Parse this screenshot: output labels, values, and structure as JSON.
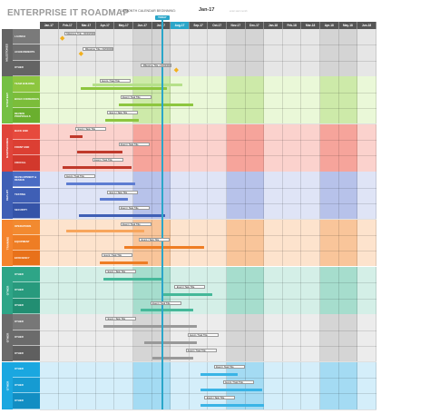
{
  "header": {
    "title": "ENTERPRISE IT ROADMAP",
    "subtitle": "18 MONTH CALENDAR BEGINNING:",
    "start_month": "Jan-17",
    "note": "enter start month",
    "today_label": "TODAY"
  },
  "months": [
    "Jan-17",
    "Feb-17",
    "Mar-17",
    "Apr-17",
    "May-17",
    "Jun-17",
    "Jul-17",
    "Aug-17",
    "Sep-17",
    "Oct-17",
    "Nov-17",
    "Dec-17",
    "Jan-18",
    "Feb-18",
    "Mar-18",
    "Apr-18",
    "May-18",
    "Jun-18"
  ],
  "today_month_index": 6.5,
  "categories": [
    {
      "name": "MILESTONES",
      "color": "#646464",
      "light": "#e6e6e6",
      "mid": "#d4d4d4",
      "rows": [
        {
          "label": "LAUNCH",
          "color": "#7a7a7a",
          "bars": [],
          "callouts": [
            {
              "text": "Milestone Title • 00/00/0000",
              "start": 1.3
            }
          ],
          "milestones": [
            {
              "pos": 1.2
            }
          ]
        },
        {
          "label": "ACHIEVEMENTS",
          "color": "#6e6e6e",
          "bars": [],
          "callouts": [
            {
              "text": "Milestone Title • 00/00/0000",
              "start": 2.3
            }
          ],
          "milestones": [
            {
              "pos": 2.2
            }
          ]
        },
        {
          "label": "OTHER",
          "color": "#646464",
          "bars": [],
          "callouts": [
            {
              "text": "Milestone Title • 00/00/0000",
              "start": 5.4
            }
          ],
          "milestones": [
            {
              "pos": 7.3
            }
          ]
        }
      ]
    },
    {
      "name": "STRATEGY",
      "color": "#75c043",
      "light": "#eaf8d8",
      "mid": "#cdeaa9",
      "rows": [
        {
          "label": "TEAM BUILDING",
          "color": "#8dc63f",
          "bars": [
            {
              "start": 2.2,
              "end": 6.8,
              "color": "#8dc63f"
            },
            {
              "start": 2.8,
              "end": 7.6,
              "color": "#b5e08a"
            }
          ],
          "callouts": [
            {
              "text": "Event / Task Title",
              "start": 3.2
            }
          ]
        },
        {
          "label": "BUILD CONSENSUS",
          "color": "#7bbd3a",
          "bars": [
            {
              "start": 4.2,
              "end": 8.2,
              "color": "#8dc63f"
            }
          ],
          "callouts": [
            {
              "text": "Event / Task Title",
              "start": 4.3
            }
          ]
        },
        {
          "label": "REVIEW PROPOSALS",
          "color": "#6aaf2e",
          "bars": [
            {
              "start": 3.5,
              "end": 5.3,
              "color": "#8dc63f"
            }
          ],
          "callouts": [
            {
              "text": "Event / Task Title",
              "start": 3.6
            }
          ]
        }
      ]
    },
    {
      "name": "MAINTENANCE",
      "color": "#e0443a",
      "light": "#fbd2cd",
      "mid": "#f6a49b",
      "rows": [
        {
          "label": "BACK END",
          "color": "#e64a3d",
          "bars": [
            {
              "start": 1.6,
              "end": 2.3,
              "color": "#c0392b"
            }
          ],
          "callouts": [
            {
              "text": "Event / Task Title",
              "start": 1.9
            }
          ]
        },
        {
          "label": "FRONT END",
          "color": "#dc3f33",
          "bars": [
            {
              "start": 2.0,
              "end": 4.4,
              "color": "#c0392b"
            }
          ],
          "callouts": [
            {
              "text": "Event / Task Title",
              "start": 4.2
            }
          ]
        },
        {
          "label": "CRUCIAL",
          "color": "#d2382c",
          "bars": [
            {
              "start": 1.2,
              "end": 4.9,
              "color": "#c0392b"
            }
          ],
          "callouts": [
            {
              "text": "Event / Task Title",
              "start": 2.8
            }
          ]
        }
      ]
    },
    {
      "name": "DEPLOY",
      "color": "#3f5fb5",
      "light": "#dfe4f6",
      "mid": "#b7c2ea",
      "rows": [
        {
          "label": "DEVELOPMENT & DESIGN",
          "color": "#4a6cc4",
          "bars": [
            {
              "start": 1.4,
              "end": 5.1,
              "color": "#5d7cd1"
            }
          ],
          "callouts": [
            {
              "text": "Event / Task Title",
              "start": 1.3
            }
          ]
        },
        {
          "label": "TESTING",
          "color": "#3f5fb5",
          "bars": [
            {
              "start": 3.2,
              "end": 4.7,
              "color": "#5d7cd1"
            }
          ],
          "callouts": [
            {
              "text": "Event / Task Title",
              "start": 3.6
            }
          ]
        },
        {
          "label": "SECURITY",
          "color": "#3554a8",
          "bars": [
            {
              "start": 2.1,
              "end": 6.7,
              "color": "#3f5fb5"
            }
          ],
          "callouts": [
            {
              "text": "Event / Task Title",
              "start": 4.2
            }
          ]
        }
      ]
    },
    {
      "name": "TRAINING",
      "color": "#f5842d",
      "light": "#fde3cd",
      "mid": "#f9c59a",
      "rows": [
        {
          "label": "OPERATIONS",
          "color": "#f28a30",
          "bars": [
            {
              "start": 1.4,
              "end": 5.6,
              "color": "#f7a55c"
            }
          ],
          "callouts": [
            {
              "text": "Event / Task Title",
              "start": 4.3
            }
          ]
        },
        {
          "label": "EQUIPMENT",
          "color": "#ee7d24",
          "bars": [
            {
              "start": 4.5,
              "end": 8.8,
              "color": "#ee7d24"
            }
          ],
          "callouts": [
            {
              "text": "Event / Task Title",
              "start": 5.3
            }
          ]
        },
        {
          "label": "EFFICIENCY",
          "color": "#e8711a",
          "bars": [
            {
              "start": 3.2,
              "end": 5.8,
              "color": "#ee7d24"
            }
          ],
          "callouts": [
            {
              "text": "Event / Task Title",
              "start": 3.3
            }
          ]
        }
      ]
    },
    {
      "name": "OTHER",
      "color": "#2ea587",
      "light": "#d4efe7",
      "mid": "#a6ddcd",
      "rows": [
        {
          "label": "OTHER",
          "color": "#2ea587",
          "bars": [
            {
              "start": 3.4,
              "end": 6.6,
              "color": "#45b899"
            }
          ],
          "callouts": [
            {
              "text": "Event / Task Title",
              "start": 3.5
            }
          ]
        },
        {
          "label": "OTHER",
          "color": "#289a7d",
          "bars": [
            {
              "start": 6.6,
              "end": 9.2,
              "color": "#45b899"
            }
          ],
          "callouts": [
            {
              "text": "Event / Task Title",
              "start": 7.2
            }
          ]
        },
        {
          "label": "OTHER",
          "color": "#228e72",
          "bars": [
            {
              "start": 5.4,
              "end": 8.2,
              "color": "#45b899"
            }
          ],
          "callouts": [
            {
              "text": "Event / Task Title",
              "start": 5.9
            }
          ]
        }
      ]
    },
    {
      "name": "OTHER",
      "color": "#6b6b6b",
      "light": "#ececec",
      "mid": "#d5d5d5",
      "rows": [
        {
          "label": "OTHER",
          "color": "#777777",
          "bars": [
            {
              "start": 3.4,
              "end": 8.4,
              "color": "#999999"
            }
          ],
          "callouts": [
            {
              "text": "Event / Task Title",
              "start": 3.5
            }
          ]
        },
        {
          "label": "OTHER",
          "color": "#6b6b6b",
          "bars": [
            {
              "start": 5.6,
              "end": 8.4,
              "color": "#999999"
            }
          ],
          "callouts": [
            {
              "text": "Event / Task Title",
              "start": 7.9
            }
          ]
        },
        {
          "label": "OTHER",
          "color": "#5f5f5f",
          "bars": [
            {
              "start": 6.0,
              "end": 8.2,
              "color": "#999999"
            }
          ],
          "callouts": [
            {
              "text": "Event / Task Title",
              "start": 7.8
            }
          ]
        }
      ]
    },
    {
      "name": "OTHER",
      "color": "#1aa7e0",
      "light": "#d4eefa",
      "mid": "#a4dbf3",
      "rows": [
        {
          "label": "OTHER",
          "color": "#1aa7e0",
          "bars": [
            {
              "start": 8.6,
              "end": 10.6,
              "color": "#3ab4e6"
            }
          ],
          "callouts": [
            {
              "text": "Event / Task Title",
              "start": 9.3
            }
          ]
        },
        {
          "label": "OTHER",
          "color": "#169bd2",
          "bars": [
            {
              "start": 8.6,
              "end": 11.9,
              "color": "#3ab4e6"
            }
          ],
          "callouts": [
            {
              "text": "Event / Task Title",
              "start": 9.8
            }
          ]
        },
        {
          "label": "OTHER",
          "color": "#128ec3",
          "bars": [
            {
              "start": 8.6,
              "end": 12.0,
              "color": "#3ab4e6"
            }
          ],
          "callouts": [
            {
              "text": "Event / Task Title",
              "start": 8.8
            }
          ]
        }
      ]
    }
  ]
}
